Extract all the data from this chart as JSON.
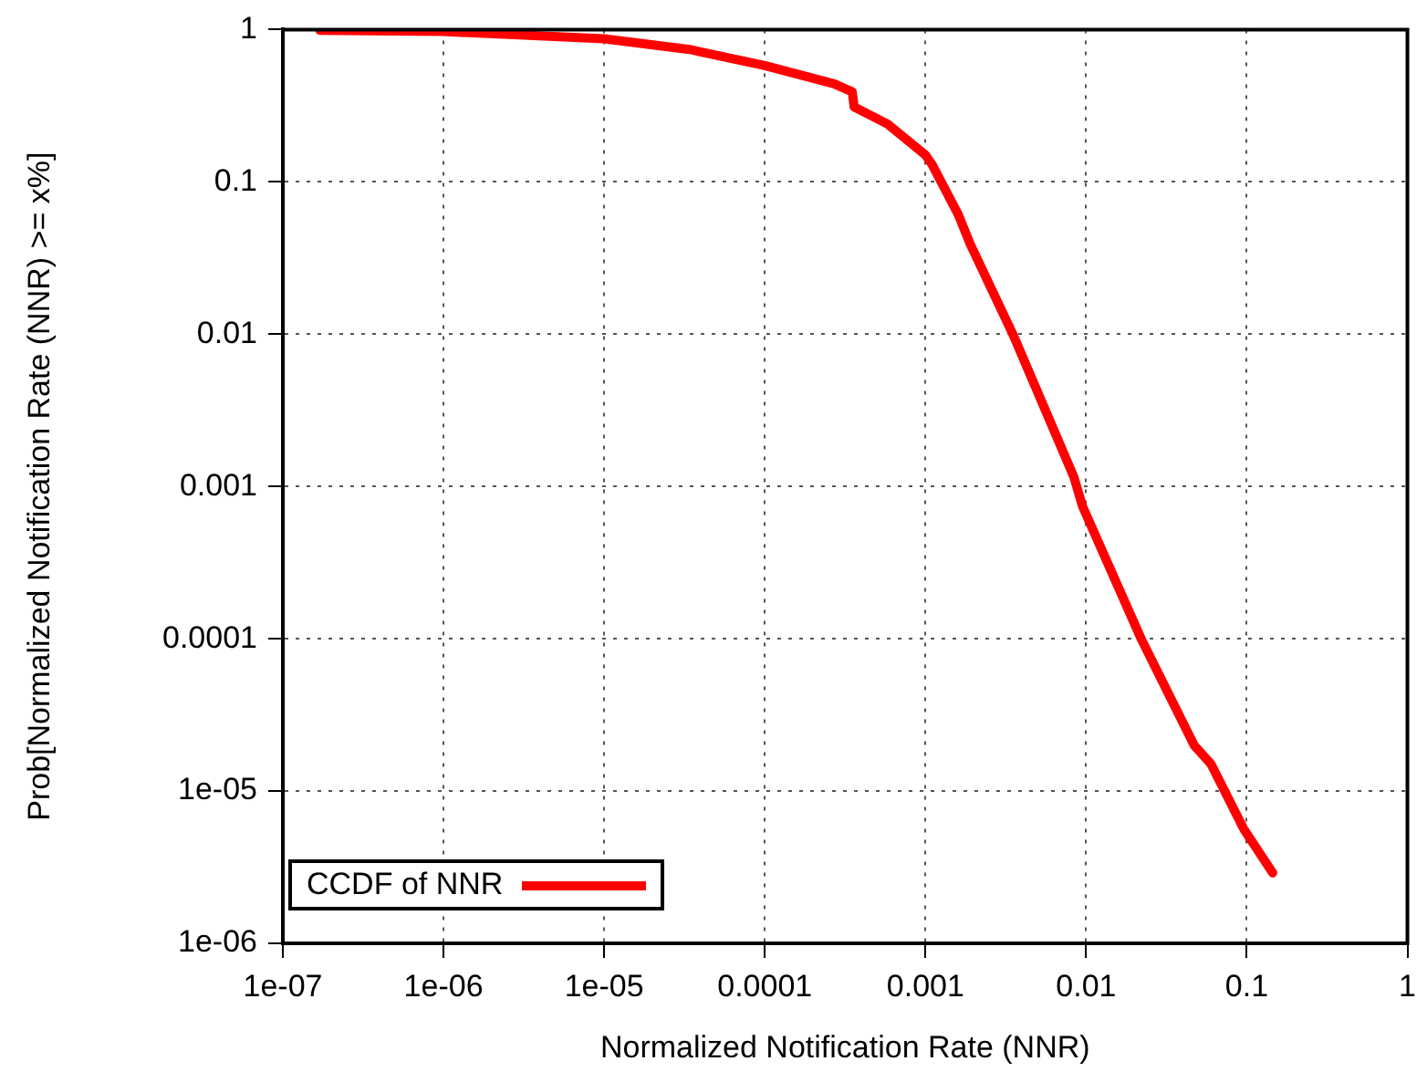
{
  "chart_data": {
    "type": "line",
    "xlabel": "Normalized Notification Rate (NNR)",
    "ylabel": "Prob[Normalized Notification Rate (NNR) >= x%]",
    "log": "xy",
    "grid": true,
    "legend": "bottom left",
    "marker": "none",
    "line_style": "solid",
    "xlim": [
      1e-07,
      1
    ],
    "ylim": [
      1e-06,
      1
    ],
    "xticks": [
      {
        "value": 1e-07,
        "label": "1e-07"
      },
      {
        "value": 1e-06,
        "label": "1e-06"
      },
      {
        "value": 1e-05,
        "label": "1e-05"
      },
      0.0001,
      0.001,
      0.01,
      0.1,
      1
    ],
    "yticks": [
      {
        "value": 1e-06,
        "label": "1e-06"
      },
      {
        "value": 1e-05,
        "label": "1e-05"
      },
      0.0001,
      0.001,
      0.01,
      0.1,
      1
    ],
    "series": [
      {
        "name": "CCDF of NNR",
        "color": "#ff0000",
        "x": [
          1.7e-07,
          1e-06,
          1e-05,
          3.4e-05,
          0.0001,
          0.00027,
          0.00035,
          0.00036,
          0.00058,
          0.001,
          0.0011,
          0.0016,
          0.0019,
          0.0035,
          0.0084,
          0.0095,
          0.022,
          0.047,
          0.06,
          0.096,
          0.145
        ],
        "values": [
          0.99,
          0.97,
          0.87,
          0.74,
          0.58,
          0.44,
          0.39,
          0.31,
          0.24,
          0.15,
          0.13,
          0.061,
          0.039,
          0.01,
          0.00115,
          0.00074,
          0.0001,
          2e-05,
          1.5e-05,
          5.6e-06,
          2.9e-06
        ]
      }
    ]
  }
}
